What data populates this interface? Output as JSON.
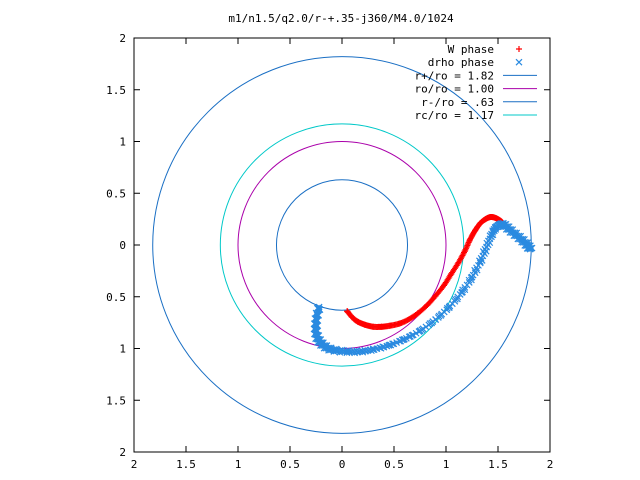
{
  "chart_data": {
    "type": "scatter",
    "title": "m1/n1.5/q2.0/r-+.35-j360/M4.0/1024",
    "xlabel": "",
    "ylabel": "",
    "xlim": [
      -2,
      2
    ],
    "ylim": [
      -2,
      2
    ],
    "x_tick_labels": [
      "2",
      "1.5",
      "1",
      "0.5",
      "0",
      "0.5",
      "1",
      "1.5",
      "2"
    ],
    "y_tick_labels": [
      "2",
      "1.5",
      "1",
      "0.5",
      "0",
      "0.5",
      "1",
      "1.5",
      "2"
    ],
    "grid": false,
    "legend_position": "top-right",
    "circles": [
      {
        "name": "r+/ro = 1.82",
        "radius": 1.82,
        "color": "#1a6fc4"
      },
      {
        "name": "ro/ro = 1.00",
        "radius": 1.0,
        "color": "#aa00aa"
      },
      {
        "name": "r-/ro = .63",
        "radius": 0.63,
        "color": "#1a6fc4"
      },
      {
        "name": "rc/ro = 1.17",
        "radius": 1.17,
        "color": "#00c8c8"
      }
    ],
    "series": [
      {
        "name": "W phase",
        "marker": "+",
        "color": "#ff0000",
        "x": [
          0.05,
          0.1,
          0.15,
          0.22,
          0.3,
          0.38,
          0.46,
          0.55,
          0.64,
          0.73,
          0.82,
          0.9,
          0.98,
          1.05,
          1.12,
          1.18,
          1.23,
          1.28,
          1.33,
          1.38,
          1.43,
          1.48,
          1.53,
          1.57
        ],
        "y": [
          -0.64,
          -0.7,
          -0.74,
          -0.77,
          -0.79,
          -0.79,
          -0.78,
          -0.76,
          -0.72,
          -0.66,
          -0.58,
          -0.49,
          -0.39,
          -0.28,
          -0.17,
          -0.06,
          0.05,
          0.14,
          0.21,
          0.25,
          0.27,
          0.26,
          0.23,
          0.19
        ]
      },
      {
        "name": "drho phase",
        "marker": "x",
        "color": "#2a8ae0",
        "x": [
          -0.22,
          -0.24,
          -0.25,
          -0.25,
          -0.23,
          -0.19,
          -0.13,
          -0.05,
          0.05,
          0.17,
          0.3,
          0.45,
          0.6,
          0.75,
          0.9,
          1.03,
          1.15,
          1.25,
          1.33,
          1.39,
          1.44,
          1.48,
          1.52,
          1.56,
          1.61,
          1.67,
          1.73,
          1.78,
          1.81
        ],
        "y": [
          -0.6,
          -0.68,
          -0.76,
          -0.84,
          -0.91,
          -0.96,
          -1.0,
          -1.02,
          -1.03,
          -1.03,
          -1.01,
          -0.97,
          -0.91,
          -0.83,
          -0.72,
          -0.6,
          -0.46,
          -0.31,
          -0.16,
          -0.02,
          0.1,
          0.17,
          0.2,
          0.19,
          0.15,
          0.1,
          0.05,
          0.0,
          -0.04
        ]
      }
    ]
  }
}
